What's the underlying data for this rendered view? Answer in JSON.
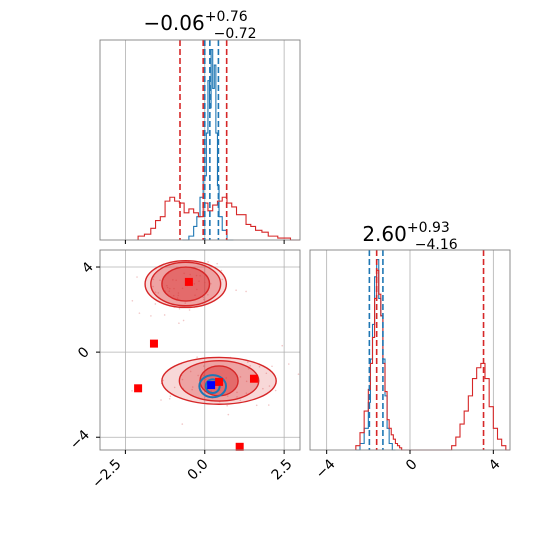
{
  "chart_data": {
    "type": "corner",
    "colors": {
      "blue": "#1f77b4",
      "red": "#d62728",
      "marker_red": "#ff0000",
      "marker_blue": "#0000ff",
      "grid": "#b0b0b0"
    },
    "panels": [
      {
        "panel": "hist-param-1",
        "type": "histogram",
        "title": {
          "value": "−0.06",
          "plus": "+0.76",
          "minus": "−0.72"
        },
        "x_range": [
          -3.3,
          3.0
        ],
        "x_ticks": [
          -2.5,
          0.0,
          2.5
        ],
        "series": [
          {
            "name": "",
            "color": "#1f77b4",
            "bin_edges": [
              -0.7,
              -0.5,
              -0.35,
              -0.25,
              -0.15,
              -0.05,
              0.05,
              0.1,
              0.15,
              0.2,
              0.25,
              0.3,
              0.35,
              0.4,
              0.45,
              0.55,
              0.7,
              0.9
            ],
            "counts": [
              0.0,
              0.02,
              0.07,
              0.12,
              0.22,
              0.33,
              0.55,
              0.82,
              0.68,
              0.98,
              0.78,
              0.9,
              0.55,
              0.28,
              0.12,
              0.05,
              0.0
            ]
          },
          {
            "name": "",
            "color": "#d62728",
            "bin_edges": [
              -2.1,
              -1.9,
              -1.7,
              -1.55,
              -1.4,
              -1.25,
              -1.1,
              -0.95,
              -0.8,
              -0.65,
              -0.5,
              -0.35,
              -0.2,
              -0.05,
              0.1,
              0.25,
              0.4,
              0.55,
              0.7,
              0.85,
              1.0,
              1.15,
              1.3,
              1.45,
              1.6,
              1.8,
              2.0,
              2.3,
              2.7,
              3.0
            ],
            "counts": [
              0.02,
              0.03,
              0.06,
              0.1,
              0.12,
              0.2,
              0.22,
              0.2,
              0.19,
              0.14,
              0.16,
              0.14,
              0.12,
              0.19,
              0.15,
              0.18,
              0.2,
              0.22,
              0.19,
              0.17,
              0.13,
              0.13,
              0.08,
              0.07,
              0.05,
              0.04,
              0.02,
              0.01,
              0.0
            ]
          }
        ],
        "vlines": [
          {
            "x": -0.78,
            "color": "#d62728"
          },
          {
            "x": -0.05,
            "color": "#d62728"
          },
          {
            "x": 0.69,
            "color": "#d62728"
          },
          {
            "x": 0.0,
            "color": "#1f77b4"
          },
          {
            "x": 0.16,
            "color": "#1f77b4"
          },
          {
            "x": 0.43,
            "color": "#1f77b4"
          }
        ]
      },
      {
        "panel": "hist-param-2",
        "type": "histogram",
        "title": {
          "value": "2.60",
          "plus": "+0.93",
          "minus": "−4.16"
        },
        "x_range": [
          -4.8,
          4.8
        ],
        "x_ticks": [
          -4,
          0,
          4
        ],
        "series": [
          {
            "name": "",
            "color": "#1f77b4",
            "bin_edges": [
              -2.6,
              -2.4,
              -2.2,
              -2.0,
              -1.9,
              -1.8,
              -1.7,
              -1.6,
              -1.5,
              -1.4,
              -1.3,
              -1.2,
              -1.1,
              -1.0,
              -0.85,
              -0.7
            ],
            "counts": [
              0.0,
              0.03,
              0.1,
              0.22,
              0.42,
              0.58,
              0.8,
              0.88,
              0.7,
              0.62,
              0.42,
              0.25,
              0.1,
              0.03,
              0.0
            ]
          },
          {
            "name": "",
            "color": "#d62728",
            "bin_edges": [
              -2.6,
              -2.4,
              -2.2,
              -2.0,
              -1.9,
              -1.8,
              -1.7,
              -1.6,
              -1.5,
              -1.4,
              -1.3,
              -1.2,
              -1.1,
              -1.0,
              -0.9,
              -0.8,
              -0.7,
              -0.6,
              -0.5,
              -0.4,
              -0.3,
              2.0,
              2.2,
              2.4,
              2.6,
              2.8,
              3.0,
              3.2,
              3.4,
              3.6,
              3.8,
              4.0,
              4.2,
              4.4,
              4.6,
              4.8
            ],
            "counts": [
              0.02,
              0.08,
              0.18,
              0.28,
              0.4,
              0.52,
              0.7,
              0.83,
              0.72,
              0.62,
              0.4,
              0.27,
              0.14,
              0.1,
              0.07,
              0.05,
              0.03,
              0.02,
              0.01,
              0.0,
              0.0,
              0.02,
              0.06,
              0.12,
              0.18,
              0.25,
              0.33,
              0.38,
              0.4,
              0.33,
              0.2,
              0.1,
              0.05,
              0.02,
              0.0
            ]
          }
        ],
        "vlines": [
          {
            "x": -1.95,
            "color": "#1f77b4"
          },
          {
            "x": -1.6,
            "color": "#d62728"
          },
          {
            "x": -1.3,
            "color": "#1f77b4"
          },
          {
            "x": 3.53,
            "color": "#d62728"
          }
        ]
      },
      {
        "panel": "joint-param-1-2",
        "type": "scatter-contour",
        "x_range": [
          -3.3,
          3.0
        ],
        "y_range": [
          -4.6,
          4.8
        ],
        "x_ticks": [
          -2.5,
          0.0,
          2.5
        ],
        "x_tick_labels": [
          "−2.5",
          "0.0",
          "2.5"
        ],
        "y_ticks": [
          -4,
          0,
          4
        ],
        "y_tick_labels": [
          "−4",
          "0",
          "4"
        ],
        "red_contours": [
          {
            "center": [
              -0.6,
              3.2
            ],
            "levels": [
              {
                "rx": 0.75,
                "ry": 0.8,
                "opacity": 0.45
              },
              {
                "rx": 1.1,
                "ry": 1.02,
                "opacity": 0.3
              },
              {
                "rx": 1.28,
                "ry": 1.1,
                "opacity": 0.18
              }
            ]
          },
          {
            "center": [
              0.45,
              -1.35
            ],
            "levels": [
              {
                "rx": 0.6,
                "ry": 0.7,
                "opacity": 0.45
              },
              {
                "rx": 1.25,
                "ry": 0.95,
                "opacity": 0.3
              },
              {
                "rx": 1.8,
                "ry": 1.1,
                "opacity": 0.18
              }
            ]
          }
        ],
        "blue_contours": [
          {
            "center": [
              0.25,
              -1.6
            ],
            "levels": [
              {
                "rx": 0.22,
                "ry": 0.32
              },
              {
                "rx": 0.42,
                "ry": 0.52
              }
            ]
          }
        ],
        "red_markers": [
          [
            -0.5,
            3.3
          ],
          [
            -1.6,
            0.4
          ],
          [
            -2.1,
            -1.7
          ],
          [
            0.45,
            -1.4
          ],
          [
            1.55,
            -1.25
          ],
          [
            1.1,
            -4.45
          ]
        ],
        "blue_markers": [
          [
            0.2,
            -1.55
          ]
        ]
      }
    ]
  }
}
